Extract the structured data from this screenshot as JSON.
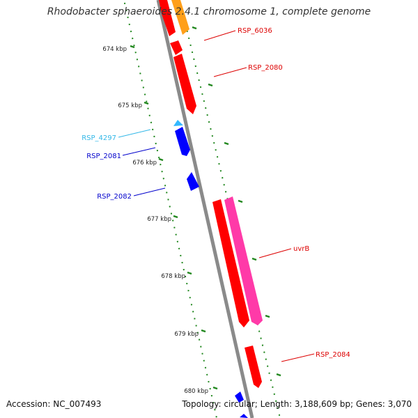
{
  "title": "Rhodobacter sphaeroides 2.4.1 chromosome 1, complete genome",
  "footer": {
    "accession": "Accession: NC_007493",
    "topology": "Topology: circular; Length: 3,188,609 bp; Genes: 3,070"
  },
  "colors": {
    "backbone": "#8a8a8a",
    "tick": "#22881f",
    "forward_gene": "#ff0000",
    "reverse_gene": "#0000ff",
    "misc_feature": "#ff9f1a",
    "uvrB_highlight": "#ff3aa8",
    "rsp4297": "#33b8ff"
  },
  "scale_labels": [
    "674 kbp",
    "675 kbp",
    "676 kbp",
    "677 kbp",
    "678 kbp",
    "679 kbp",
    "680 kbp"
  ],
  "genes": [
    {
      "name": "RSP_6036",
      "color": "#dd0000"
    },
    {
      "name": "RSP_2080",
      "color": "#dd0000"
    },
    {
      "name": "RSP_4297",
      "color": "#33b8e8"
    },
    {
      "name": "RSP_2081",
      "color": "#0000cc"
    },
    {
      "name": "RSP_2082",
      "color": "#0000cc"
    },
    {
      "name": "uvrB",
      "color": "#dd0000"
    },
    {
      "name": "RSP_2084",
      "color": "#dd0000"
    }
  ]
}
